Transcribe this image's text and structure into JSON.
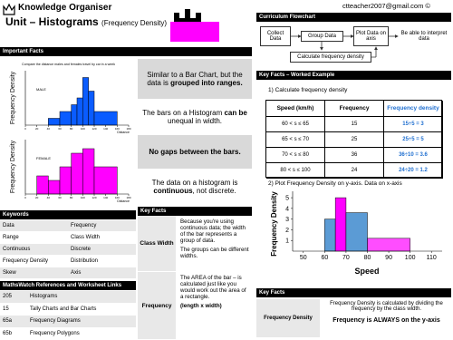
{
  "header": {
    "title": "Knowledge Organiser",
    "unit_title": "Unit – Histograms",
    "unit_subtitle": "(Frequency Density)",
    "email": "ctteacher2007@gmail.com ©"
  },
  "important_facts": {
    "heading": "Important Facts",
    "caption": "Compare the distance males and females travel by car in a week",
    "y_label": "Frequency Density",
    "x_label": "Distance",
    "charts": [
      {
        "type": "histogram",
        "label": "MALE",
        "color": "#0a5cff",
        "bins": [
          40,
          60,
          80,
          90,
          100,
          110,
          120,
          160
        ],
        "values": [
          1,
          2,
          3,
          4,
          7,
          5,
          2
        ],
        "xlim": [
          0,
          180
        ],
        "ylim": [
          0,
          8
        ],
        "xticks": [
          0,
          20,
          40,
          60,
          80,
          100,
          120,
          140,
          160,
          180
        ]
      },
      {
        "type": "histogram",
        "label": "FEMALE",
        "color": "#ff00ff",
        "bins": [
          20,
          40,
          60,
          80,
          100,
          120,
          160
        ],
        "values": [
          2,
          1.5,
          3,
          4.5,
          5,
          3
        ],
        "xlim": [
          0,
          180
        ],
        "ylim": [
          0,
          6
        ],
        "xticks": [
          0,
          20,
          40,
          60,
          80,
          100,
          120,
          140,
          160,
          180
        ]
      }
    ],
    "facts": [
      {
        "shade": true,
        "parts": [
          {
            "t": "Similar to a Bar Chart, but the data is ",
            "b": false
          },
          {
            "t": "grouped into ranges.",
            "b": true
          }
        ]
      },
      {
        "shade": false,
        "parts": [
          {
            "t": "The bars on a Histogram ",
            "b": false
          },
          {
            "t": "can be",
            "b": true
          },
          {
            "t": " unequal in width.",
            "b": false
          }
        ]
      },
      {
        "shade": true,
        "parts": [
          {
            "t": "No gaps between the bars.",
            "b": true
          }
        ]
      },
      {
        "shade": false,
        "parts": [
          {
            "t": "The data on a histogram is ",
            "b": false
          },
          {
            "t": "continuous",
            "b": true
          },
          {
            "t": ", not discrete.",
            "b": false
          }
        ]
      }
    ]
  },
  "keywords": {
    "heading": "Keywords",
    "rows": [
      [
        "Data",
        "Frequency"
      ],
      [
        "Range",
        "Class Width"
      ],
      [
        "Continuous",
        "Discrete"
      ],
      [
        "Frequency Density",
        "Distribution"
      ],
      [
        "Skew",
        "Axis"
      ]
    ]
  },
  "mathswatch": {
    "heading": "MathsWatch  References and Worksheet Links",
    "rows": [
      [
        "205",
        "Histograms"
      ],
      [
        "15",
        "Tally Charts and Bar Charts"
      ],
      [
        "65a",
        "Frequency Diagrams"
      ],
      [
        "65b",
        "Frequency Polygons"
      ]
    ]
  },
  "key_facts": {
    "heading": "Key Facts",
    "rows": [
      {
        "term": "Class Width",
        "text": "Because you're using continuous data; the width of the bar represents a group of data.",
        "text2": "The groups can be different widths."
      },
      {
        "term": "Frequency",
        "text": "The AREA of the bar – is calculated just like you would work out the area of a rectangle.",
        "text2": "(length x width)"
      }
    ]
  },
  "flowchart": {
    "heading": "Curriculum Flowchart",
    "steps": [
      "Collect Data",
      "Group Data",
      "Plot Data on axis",
      "Be able to interpret data"
    ],
    "loop": "Calculate frequency density"
  },
  "worked_example": {
    "heading": "Key Facts – Worked Example",
    "step1": "1) Calculate frequency density",
    "columns": [
      "Speed (km/h)",
      "Frequency",
      "Frequency density"
    ],
    "rows": [
      [
        "60 < s ≤ 65",
        "15",
        "15÷5 = 3"
      ],
      [
        "65 < s ≤ 70",
        "25",
        "25÷5 = 5"
      ],
      [
        "70 < s ≤ 80",
        "36",
        "36÷10 = 3.6"
      ],
      [
        "80 < s ≤ 100",
        "24",
        "24÷20 = 1.2"
      ]
    ],
    "step2": "2) Plot Frequency Density on y-axis.   Data on x-axis",
    "chart": {
      "type": "histogram",
      "x_label": "Speed",
      "y_label": "Frequency Density",
      "bins": [
        60,
        65,
        70,
        80,
        100
      ],
      "values": [
        3,
        5,
        3.6,
        1.2
      ],
      "colors": [
        "#5b9bd5",
        "#ff00ff",
        "#5b9bd5",
        "#ff4dff"
      ],
      "xlim": [
        45,
        115
      ],
      "ylim": [
        0,
        5.6
      ],
      "xticks": [
        50,
        60,
        70,
        80,
        90,
        100,
        110
      ],
      "yticks": [
        1,
        2,
        3,
        4,
        5
      ]
    }
  },
  "key_facts_2": {
    "heading": "Key Facts",
    "term": "Frequency Density",
    "text": "Frequency Density is calculated by dividing the frequency by the class width.",
    "text_bold": "Frequency is ALWAYS on the y-axis"
  }
}
